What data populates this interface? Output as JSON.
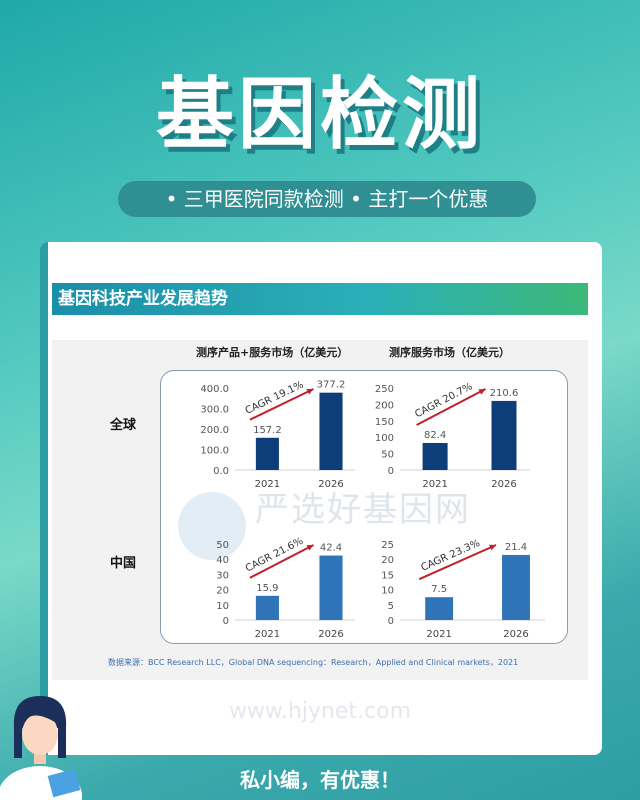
{
  "title": "基因检测",
  "subtitle": "• 三甲医院同款检测 • 主打一个优惠",
  "section_title": "基因科技产业发展趋势",
  "chart_titles": [
    "测序产品+服务市场（亿美元）",
    "测序服务市场（亿美元）"
  ],
  "row_labels": [
    "全球",
    "中国"
  ],
  "watermark": "严选好基因网 www.hjynet.com",
  "watermark_text": "严选好基因网",
  "watermark_url": "www.hjynet.com",
  "source": "数据来源：BCC Research LLC，Global DNA sequencing：Research，Applied and Clinical markets，2021",
  "footer": "私小编，有优惠！",
  "colors": {
    "global_bar": "#0e3e7a",
    "china_bar": "#2f74b8",
    "arrow": "#c0202a"
  },
  "chart_data": [
    {
      "type": "bar",
      "title": "测序产品+服务市场（亿美元）",
      "region": "全球",
      "categories": [
        "2021",
        "2026"
      ],
      "values": [
        157.2,
        377.2
      ],
      "value_labels": [
        "157.2",
        "377.2"
      ],
      "ylim": [
        0,
        400
      ],
      "yticks": [
        "0.0",
        "100.0",
        "200.0",
        "300.0",
        "400.0"
      ],
      "annotation": "CAGR 19.1%"
    },
    {
      "type": "bar",
      "title": "测序服务市场（亿美元）",
      "region": "全球",
      "categories": [
        "2021",
        "2026"
      ],
      "values": [
        82.4,
        210.6
      ],
      "value_labels": [
        "82.4",
        "210.6"
      ],
      "ylim": [
        0,
        250
      ],
      "yticks": [
        "0",
        "50",
        "100",
        "150",
        "200",
        "250"
      ],
      "annotation": "CAGR 20.7%"
    },
    {
      "type": "bar",
      "title": "测序产品+服务市场（亿美元）",
      "region": "中国",
      "categories": [
        "2021",
        "2026"
      ],
      "values": [
        15.9,
        42.4
      ],
      "value_labels": [
        "15.9",
        "42.4"
      ],
      "ylim": [
        0,
        50
      ],
      "yticks": [
        "0",
        "10",
        "20",
        "30",
        "40",
        "50"
      ],
      "annotation": "CAGR 21.6%"
    },
    {
      "type": "bar",
      "title": "测序服务市场（亿美元）",
      "region": "中国",
      "categories": [
        "2021",
        "2026"
      ],
      "values": [
        7.5,
        21.4
      ],
      "value_labels": [
        "7.5",
        "21.4"
      ],
      "ylim": [
        0,
        25
      ],
      "yticks": [
        "0",
        "5",
        "10",
        "15",
        "20",
        "25"
      ],
      "annotation": "CAGR 23.3%"
    }
  ]
}
